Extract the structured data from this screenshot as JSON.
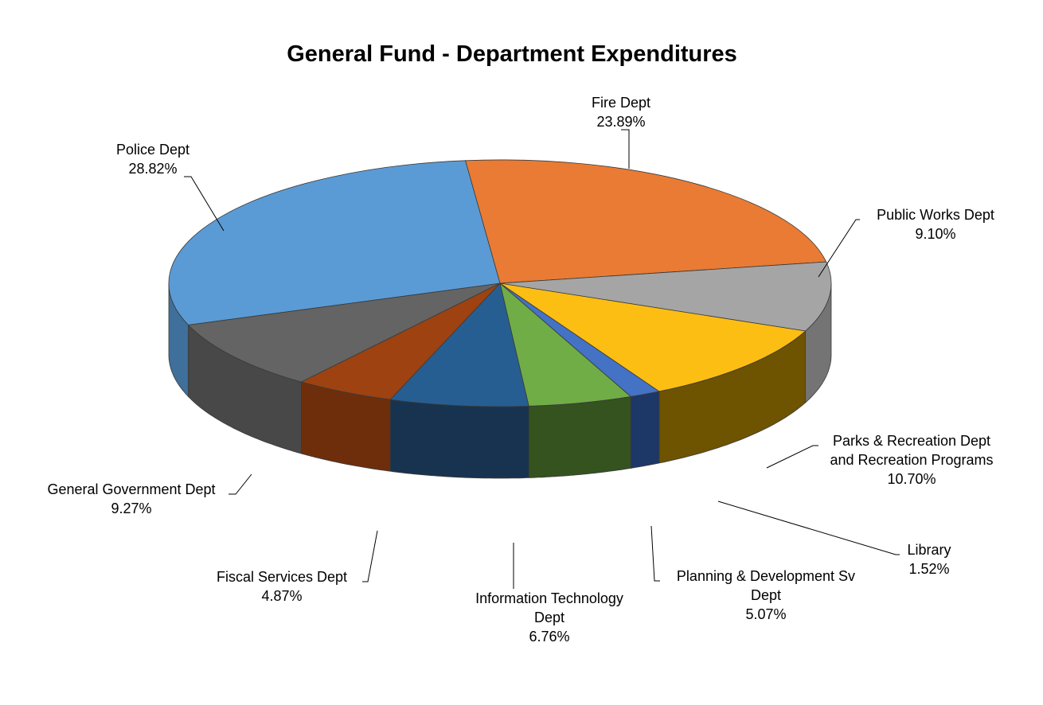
{
  "chart_data": {
    "type": "pie",
    "title": "General Fund - Department Expenditures",
    "slices": [
      {
        "name": "Fire Dept",
        "label_lines": [
          "Fire Dept",
          "23.89%"
        ],
        "percent": 23.89,
        "color": "#E97B34",
        "side_color": "#A35622"
      },
      {
        "name": "Public Works Dept",
        "label_lines": [
          "Public Works Dept",
          "9.10%"
        ],
        "percent": 9.1,
        "color": "#A5A5A5",
        "side_color": "#747474"
      },
      {
        "name": "Parks & Recreation Dept and Recreation Programs",
        "label_lines": [
          "Parks & Recreation Dept",
          "and Recreation Programs",
          "10.70%"
        ],
        "percent": 10.7,
        "color": "#FDBE13",
        "side_color": "#6E5300"
      },
      {
        "name": "Library",
        "label_lines": [
          "Library",
          "1.52%"
        ],
        "percent": 1.52,
        "color": "#4472C4",
        "side_color": "#1D3766"
      },
      {
        "name": "Planning & Development Sv Dept",
        "label_lines": [
          "Planning & Development Sv",
          "Dept",
          "5.07%"
        ],
        "percent": 5.07,
        "color": "#70AD47",
        "side_color": "#34531F"
      },
      {
        "name": "Information Technology Dept",
        "label_lines": [
          "Information Technology",
          "Dept",
          "6.76%"
        ],
        "percent": 6.76,
        "color": "#265E92",
        "side_color": "#173350"
      },
      {
        "name": "Fiscal Services Dept",
        "label_lines": [
          "Fiscal Services Dept",
          "4.87%"
        ],
        "percent": 4.87,
        "color": "#9D4210",
        "side_color": "#6E2E0B"
      },
      {
        "name": "General Government Dept",
        "label_lines": [
          "General Government Dept",
          "9.27%"
        ],
        "percent": 9.27,
        "color": "#646464",
        "side_color": "#484848"
      },
      {
        "name": "Police Dept",
        "label_lines": [
          "Police Dept",
          "28.82%"
        ],
        "percent": 28.82,
        "color": "#5B9BD5",
        "side_color": "#3F6F9B"
      }
    ],
    "legend": "none",
    "three_d": true
  }
}
